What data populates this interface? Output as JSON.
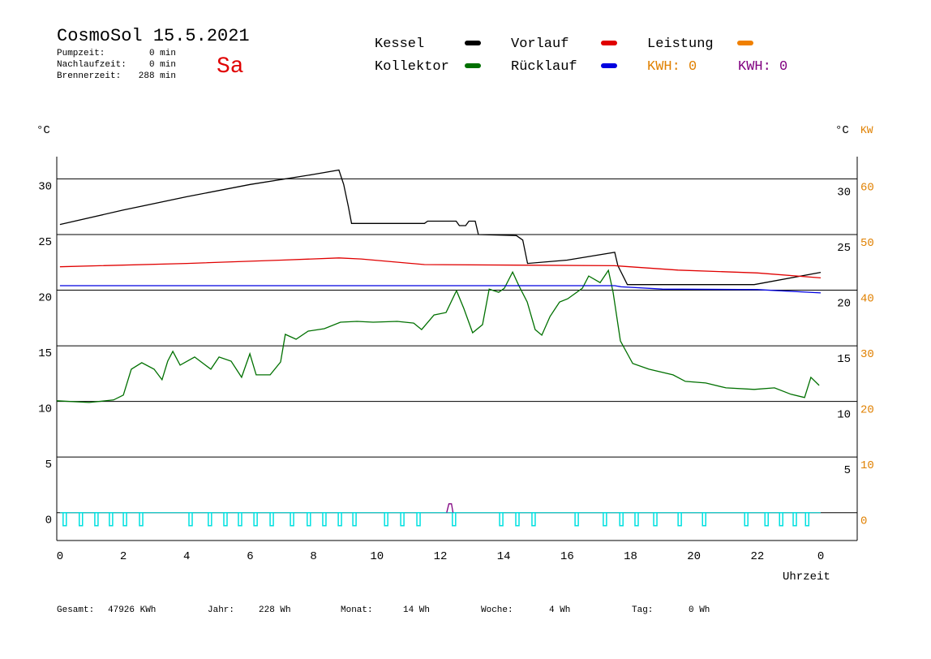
{
  "header": {
    "title": "CosmoSol 15.5.2021",
    "day": "Sa",
    "stats": [
      {
        "label": "Pumpzeit:",
        "value": "0 min"
      },
      {
        "label": "Nachlaufzeit:",
        "value": "0 min"
      },
      {
        "label": "Brennerzeit:",
        "value": "288 min"
      }
    ]
  },
  "footer": [
    {
      "label": "Gesamt:",
      "value": "47926 KWh"
    },
    {
      "label": "Jahr:",
      "value": "228 Wh"
    },
    {
      "label": "Monat:",
      "value": "14 Wh"
    },
    {
      "label": "Woche:",
      "value": "4 Wh"
    },
    {
      "label": "Tag:",
      "value": "0 Wh"
    }
  ],
  "chart_data": {
    "type": "line",
    "x_label": "Uhrzeit",
    "y_label": "°C",
    "y_label_right": "°C",
    "y2_label": "KW",
    "y2_color": "#e08000",
    "xlim": [
      -0.1,
      25.15
    ],
    "xticks": [
      0,
      2,
      4,
      6,
      8,
      10,
      12,
      14,
      16,
      18,
      20,
      22,
      {
        "value": 24,
        "label": "0"
      }
    ],
    "ylim": [
      -2.5,
      32
    ],
    "yticks": [
      0,
      5,
      10,
      15,
      20,
      25,
      30
    ],
    "yticks_right": [
      5,
      10,
      15,
      20,
      25,
      30
    ],
    "y2lim": [
      -5,
      64
    ],
    "y2ticks": [
      0,
      10,
      20,
      30,
      40,
      50,
      60
    ],
    "series": [
      {
        "name": "Kessel",
        "color": "#000000",
        "x": [
          0,
          2,
          4,
          6,
          8,
          8.8,
          8.95,
          9.1,
          9.2,
          11.5,
          11.6,
          12.5,
          12.6,
          12.8,
          12.9,
          13.1,
          13.2,
          14.4,
          14.6,
          14.75,
          16,
          17.5,
          17.6,
          17.9,
          21.9,
          24
        ],
        "values": [
          25.9,
          27.2,
          28.4,
          29.5,
          30.4,
          30.8,
          29.5,
          27.5,
          26.0,
          26.0,
          26.2,
          26.2,
          25.8,
          25.8,
          26.2,
          26.2,
          25.0,
          24.9,
          24.5,
          22.4,
          22.7,
          23.4,
          22.2,
          20.5,
          20.5,
          21.6
        ]
      },
      {
        "name": "Vorlauf",
        "color": "#e00000",
        "x": [
          0,
          4,
          7,
          8.8,
          9.5,
          11.5,
          17.5,
          19.5,
          22,
          24
        ],
        "values": [
          22.1,
          22.4,
          22.7,
          22.9,
          22.8,
          22.3,
          22.2,
          21.8,
          21.55,
          21.1
        ]
      },
      {
        "name": "Leistung",
        "color": "#f08000",
        "axis": "y2",
        "x": [],
        "values": []
      },
      {
        "name": "Kollektor",
        "color": "#007000",
        "x": [
          -0.1,
          0.92,
          1.69,
          2.0,
          2.25,
          2.58,
          2.97,
          3.22,
          3.4,
          3.56,
          3.79,
          4.25,
          4.76,
          5.02,
          5.4,
          5.73,
          5.99,
          6.19,
          6.63,
          6.96,
          7.11,
          7.45,
          7.83,
          8.34,
          8.85,
          9.37,
          9.88,
          10.64,
          11.16,
          11.41,
          11.8,
          12.18,
          12.51,
          12.74,
          13.02,
          13.33,
          13.54,
          13.84,
          14.02,
          14.28,
          14.48,
          14.74,
          14.99,
          15.2,
          15.46,
          15.76,
          16.02,
          16.48,
          16.68,
          17.04,
          17.3,
          17.45,
          17.68,
          18.07,
          18.58,
          19.34,
          19.73,
          20.37,
          21.01,
          21.9,
          22.54,
          23.06,
          23.49,
          23.69,
          23.95
        ],
        "values": [
          10.06,
          9.91,
          10.13,
          10.57,
          12.9,
          13.48,
          12.9,
          11.95,
          13.62,
          14.5,
          13.26,
          13.99,
          12.9,
          13.99,
          13.62,
          12.17,
          14.28,
          12.39,
          12.39,
          13.55,
          16.03,
          15.59,
          16.32,
          16.54,
          17.12,
          17.19,
          17.12,
          17.19,
          17.04,
          16.46,
          17.77,
          17.99,
          19.96,
          18.36,
          16.17,
          16.9,
          20.1,
          19.81,
          20.17,
          21.63,
          20.39,
          18.94,
          16.46,
          15.95,
          17.63,
          18.94,
          19.23,
          20.17,
          21.27,
          20.68,
          21.78,
          19.81,
          15.44,
          13.41,
          12.9,
          12.39,
          11.8,
          11.66,
          11.22,
          11.08,
          11.22,
          10.64,
          10.35,
          12.17,
          11.44
        ]
      },
      {
        "name": "Rücklauf",
        "color": "#0000e0",
        "x": [
          0,
          17.5,
          17.7,
          19,
          22,
          24
        ],
        "values": [
          20.4,
          20.4,
          20.3,
          20.1,
          20.05,
          19.75
        ]
      }
    ],
    "kwh_labels": [
      {
        "text": "KWH: 0",
        "color": "#e08000"
      },
      {
        "text": "KWH: 0",
        "color": "#800080"
      }
    ],
    "pump": {
      "color": "#00e0e0",
      "x": [
        0.1,
        0.61,
        1.1,
        1.56,
        2.0,
        2.51,
        4.07,
        4.68,
        5.17,
        5.63,
        6.12,
        6.63,
        7.27,
        7.8,
        8.29,
        8.78,
        9.24,
        10.24,
        10.75,
        11.26,
        12.38,
        13.87,
        14.38,
        14.89,
        16.25,
        17.14,
        17.66,
        18.14,
        18.73,
        19.5,
        20.27,
        21.6,
        22.24,
        22.7,
        23.13,
        23.52
      ]
    },
    "trace": {
      "color": "#800080",
      "x": [
        12.2,
        12.27,
        12.35,
        12.4
      ],
      "values": [
        0,
        0.8,
        0.8,
        0
      ]
    }
  }
}
